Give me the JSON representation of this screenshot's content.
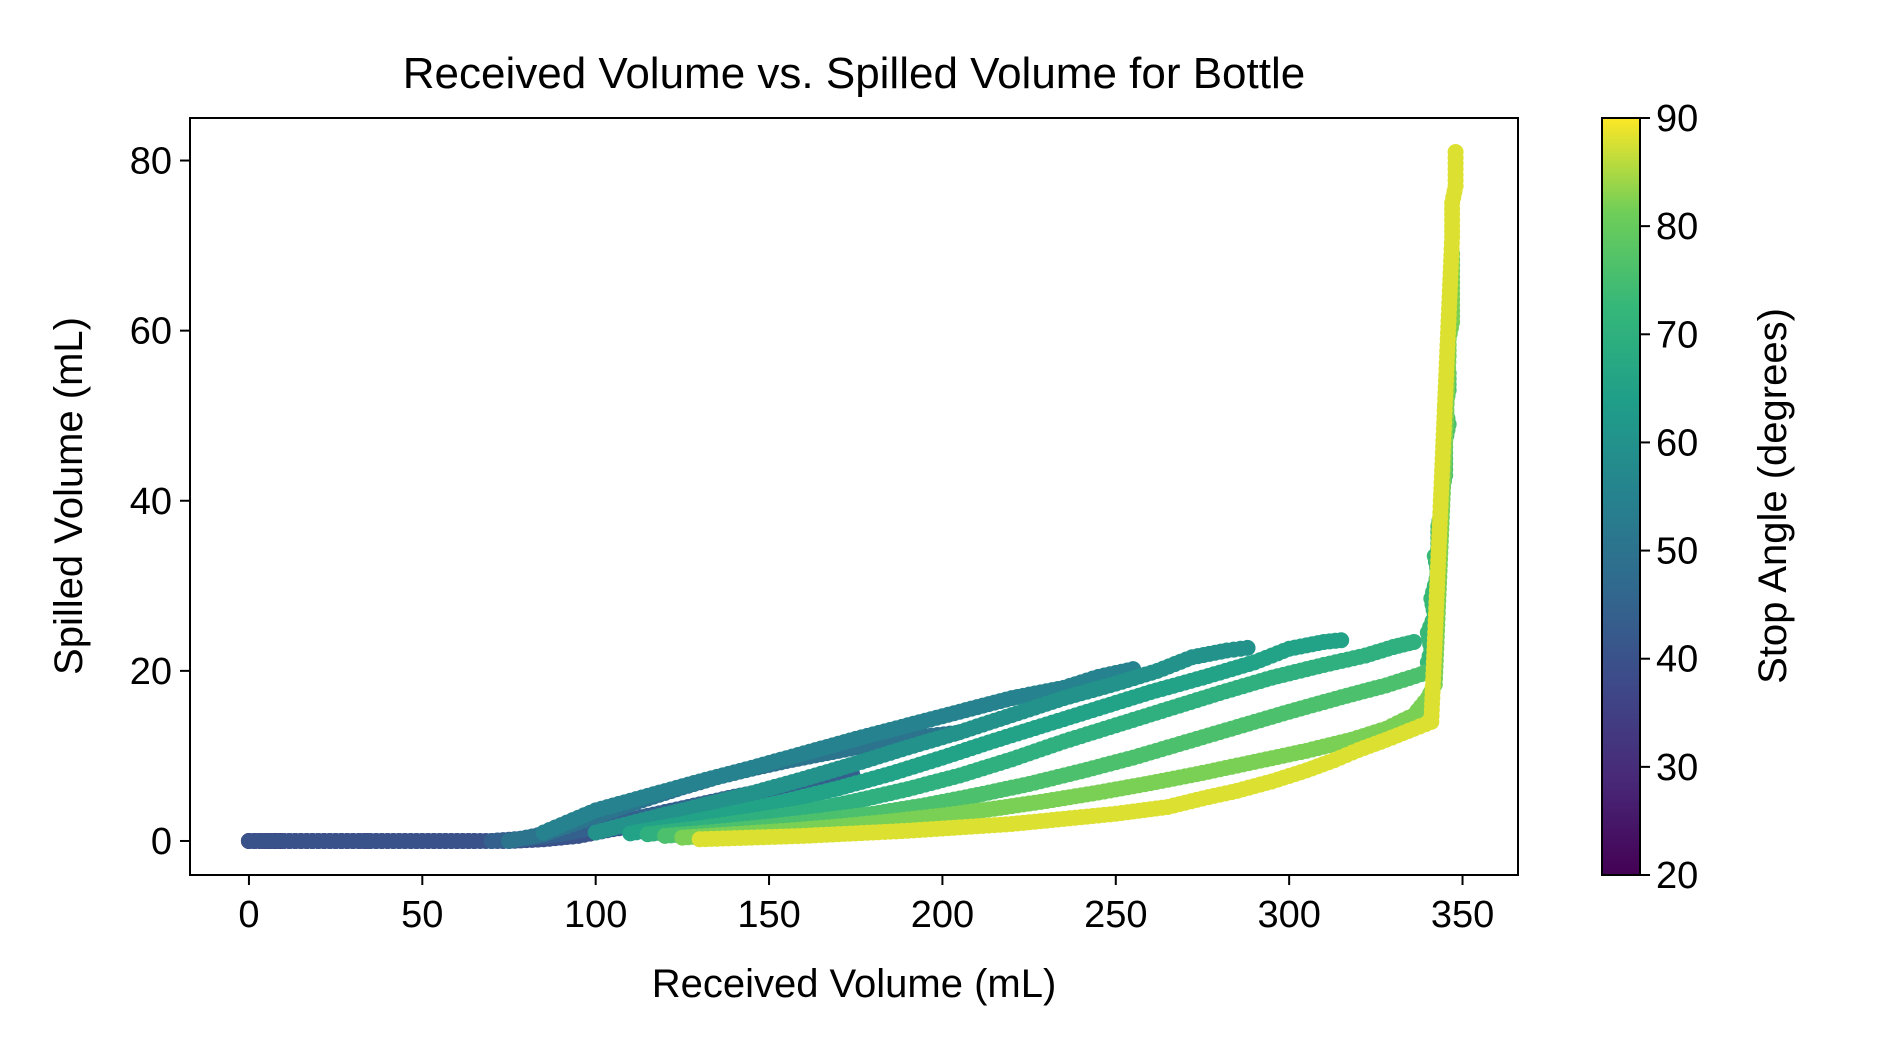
{
  "chart_data": {
    "type": "scatter",
    "title": "Received Volume vs. Spilled Volume for Bottle",
    "xlabel": "Received Volume (mL)",
    "ylabel": "Spilled Volume (mL)",
    "xlim": [
      -17,
      366
    ],
    "ylim": [
      -4,
      85
    ],
    "xticks": [
      0,
      50,
      100,
      150,
      200,
      250,
      300,
      350
    ],
    "yticks": [
      0,
      20,
      40,
      60,
      80
    ],
    "colorbar": {
      "label": "Stop Angle (degrees)",
      "range": [
        20,
        90
      ],
      "ticks": [
        20,
        30,
        40,
        50,
        60,
        70,
        80,
        90
      ],
      "colormap": "viridis"
    },
    "grid": false,
    "series": [
      {
        "stop_angle": 25,
        "points": [
          [
            0,
            0
          ],
          [
            3,
            0
          ],
          [
            6,
            0
          ],
          [
            9,
            0
          ]
        ]
      },
      {
        "stop_angle": 30,
        "points": [
          [
            0,
            0
          ],
          [
            5,
            0
          ],
          [
            10,
            0
          ],
          [
            15,
            0
          ],
          [
            20,
            0
          ],
          [
            25,
            0
          ],
          [
            30,
            0
          ],
          [
            34,
            0
          ]
        ]
      },
      {
        "stop_angle": 35,
        "points": [
          [
            0,
            0
          ],
          [
            10,
            0
          ],
          [
            20,
            0
          ],
          [
            30,
            0
          ],
          [
            40,
            0
          ],
          [
            50,
            0
          ],
          [
            60,
            0
          ],
          [
            65,
            0
          ]
        ]
      },
      {
        "stop_angle": 40,
        "points": [
          [
            0,
            0
          ],
          [
            15,
            0
          ],
          [
            30,
            0
          ],
          [
            45,
            0
          ],
          [
            60,
            0
          ],
          [
            75,
            0
          ],
          [
            85,
            0.2
          ],
          [
            95,
            0.6
          ],
          [
            105,
            1.4
          ],
          [
            115,
            2.0
          ],
          [
            125,
            2.6
          ],
          [
            135,
            3.0
          ],
          [
            142,
            3.2
          ]
        ]
      },
      {
        "stop_angle": 44,
        "points": [
          [
            70,
            0
          ],
          [
            80,
            0.3
          ],
          [
            90,
            0.8
          ],
          [
            100,
            1.6
          ],
          [
            110,
            2.5
          ],
          [
            120,
            3.4
          ],
          [
            130,
            4.3
          ],
          [
            140,
            5.2
          ],
          [
            150,
            6.0
          ],
          [
            160,
            6.8
          ],
          [
            168,
            7.4
          ],
          [
            174,
            7.8
          ]
        ]
      },
      {
        "stop_angle": 50,
        "points": [
          [
            75,
            0
          ],
          [
            85,
            0.8
          ],
          [
            95,
            2.2
          ],
          [
            105,
            3.6
          ],
          [
            115,
            5.0
          ],
          [
            125,
            6.3
          ],
          [
            135,
            7.5
          ],
          [
            145,
            8.5
          ],
          [
            155,
            9.4
          ],
          [
            165,
            10.2
          ],
          [
            175,
            11.0
          ],
          [
            185,
            11.7
          ],
          [
            195,
            12.3
          ],
          [
            204,
            12.7
          ]
        ]
      },
      {
        "stop_angle": 55,
        "points": [
          [
            85,
            1.0
          ],
          [
            100,
            3.6
          ],
          [
            115,
            5.3
          ],
          [
            130,
            7.0
          ],
          [
            145,
            8.6
          ],
          [
            160,
            10.3
          ],
          [
            175,
            12.0
          ],
          [
            190,
            13.6
          ],
          [
            205,
            15.2
          ],
          [
            220,
            16.8
          ],
          [
            235,
            18.0
          ],
          [
            245,
            19.3
          ],
          [
            255,
            20.2
          ]
        ]
      },
      {
        "stop_angle": 60,
        "points": [
          [
            100,
            1.0
          ],
          [
            115,
            2.6
          ],
          [
            130,
            4.1
          ],
          [
            145,
            5.6
          ],
          [
            160,
            7.3
          ],
          [
            175,
            9.1
          ],
          [
            190,
            11.0
          ],
          [
            205,
            12.8
          ],
          [
            220,
            14.8
          ],
          [
            235,
            16.8
          ],
          [
            250,
            18.5
          ],
          [
            262,
            20.0
          ],
          [
            272,
            21.6
          ],
          [
            282,
            22.4
          ],
          [
            288,
            22.7
          ]
        ]
      },
      {
        "stop_angle": 65,
        "points": [
          [
            110,
            0.9
          ],
          [
            125,
            2.0
          ],
          [
            140,
            3.3
          ],
          [
            155,
            4.7
          ],
          [
            170,
            6.2
          ],
          [
            185,
            7.9
          ],
          [
            200,
            9.8
          ],
          [
            215,
            11.8
          ],
          [
            230,
            13.7
          ],
          [
            245,
            15.6
          ],
          [
            260,
            17.5
          ],
          [
            275,
            19.2
          ],
          [
            290,
            21.0
          ],
          [
            300,
            22.6
          ],
          [
            310,
            23.4
          ],
          [
            315,
            23.6
          ]
        ]
      },
      {
        "stop_angle": 70,
        "points": [
          [
            115,
            0.8
          ],
          [
            130,
            1.5
          ],
          [
            145,
            2.4
          ],
          [
            160,
            3.4
          ],
          [
            175,
            4.7
          ],
          [
            190,
            6.1
          ],
          [
            205,
            7.7
          ],
          [
            220,
            9.6
          ],
          [
            235,
            11.7
          ],
          [
            250,
            13.6
          ],
          [
            265,
            15.5
          ],
          [
            280,
            17.4
          ],
          [
            295,
            19.2
          ],
          [
            310,
            20.7
          ],
          [
            322,
            21.8
          ],
          [
            330,
            22.8
          ],
          [
            336,
            23.4
          ]
        ]
      },
      {
        "stop_angle": 73,
        "points": [
          [
            340,
            21.0
          ],
          [
            341,
            22.5
          ],
          [
            340,
            24.5
          ],
          [
            342,
            26.5
          ],
          [
            341,
            28.5
          ],
          [
            343,
            31.5
          ],
          [
            342,
            33.5
          ]
        ]
      },
      {
        "stop_angle": 76,
        "points": [
          [
            120,
            0.6
          ],
          [
            135,
            1.1
          ],
          [
            150,
            1.7
          ],
          [
            165,
            2.4
          ],
          [
            180,
            3.2
          ],
          [
            195,
            4.2
          ],
          [
            210,
            5.4
          ],
          [
            225,
            6.7
          ],
          [
            240,
            8.2
          ],
          [
            255,
            9.8
          ],
          [
            270,
            11.6
          ],
          [
            285,
            13.4
          ],
          [
            300,
            15.2
          ],
          [
            315,
            16.9
          ],
          [
            328,
            18.3
          ],
          [
            338,
            19.6
          ],
          [
            342,
            20.3
          ],
          [
            343,
            35.0
          ],
          [
            343,
            37.0
          ],
          [
            344,
            39.0
          ],
          [
            344,
            41.0
          ],
          [
            345,
            43.0
          ],
          [
            345,
            45.0
          ],
          [
            345,
            47.0
          ],
          [
            346,
            49.0
          ],
          [
            345,
            51.0
          ],
          [
            346,
            53.0
          ],
          [
            346,
            55.0
          ]
        ]
      },
      {
        "stop_angle": 82,
        "points": [
          [
            125,
            0.4
          ],
          [
            140,
            0.8
          ],
          [
            155,
            1.2
          ],
          [
            170,
            1.7
          ],
          [
            185,
            2.3
          ],
          [
            200,
            3.0
          ],
          [
            215,
            3.8
          ],
          [
            230,
            4.7
          ],
          [
            245,
            5.7
          ],
          [
            260,
            6.8
          ],
          [
            275,
            8.0
          ],
          [
            290,
            9.3
          ],
          [
            305,
            10.6
          ],
          [
            318,
            11.9
          ],
          [
            328,
            13.2
          ],
          [
            336,
            14.8
          ],
          [
            340,
            16.8
          ],
          [
            342,
            18.4
          ],
          [
            346,
            57.0
          ],
          [
            346,
            59.0
          ],
          [
            347,
            61.0
          ],
          [
            347,
            63.0
          ],
          [
            347,
            65.0
          ],
          [
            347,
            67.0
          ],
          [
            347,
            69.0
          ]
        ]
      },
      {
        "stop_angle": 88,
        "points": [
          [
            130,
            0.2
          ],
          [
            145,
            0.4
          ],
          [
            160,
            0.6
          ],
          [
            175,
            0.9
          ],
          [
            190,
            1.2
          ],
          [
            205,
            1.6
          ],
          [
            220,
            2.0
          ],
          [
            235,
            2.6
          ],
          [
            250,
            3.2
          ],
          [
            265,
            4.0
          ],
          [
            275,
            5.0
          ],
          [
            285,
            5.9
          ],
          [
            295,
            7.0
          ],
          [
            305,
            8.3
          ],
          [
            313,
            9.5
          ],
          [
            320,
            10.7
          ],
          [
            328,
            11.9
          ],
          [
            336,
            13.2
          ],
          [
            341,
            14.0
          ],
          [
            347,
            71.0
          ],
          [
            347,
            73.0
          ],
          [
            347,
            75.0
          ],
          [
            348,
            77.0
          ],
          [
            348,
            79.0
          ],
          [
            348,
            81.0
          ]
        ]
      }
    ]
  }
}
